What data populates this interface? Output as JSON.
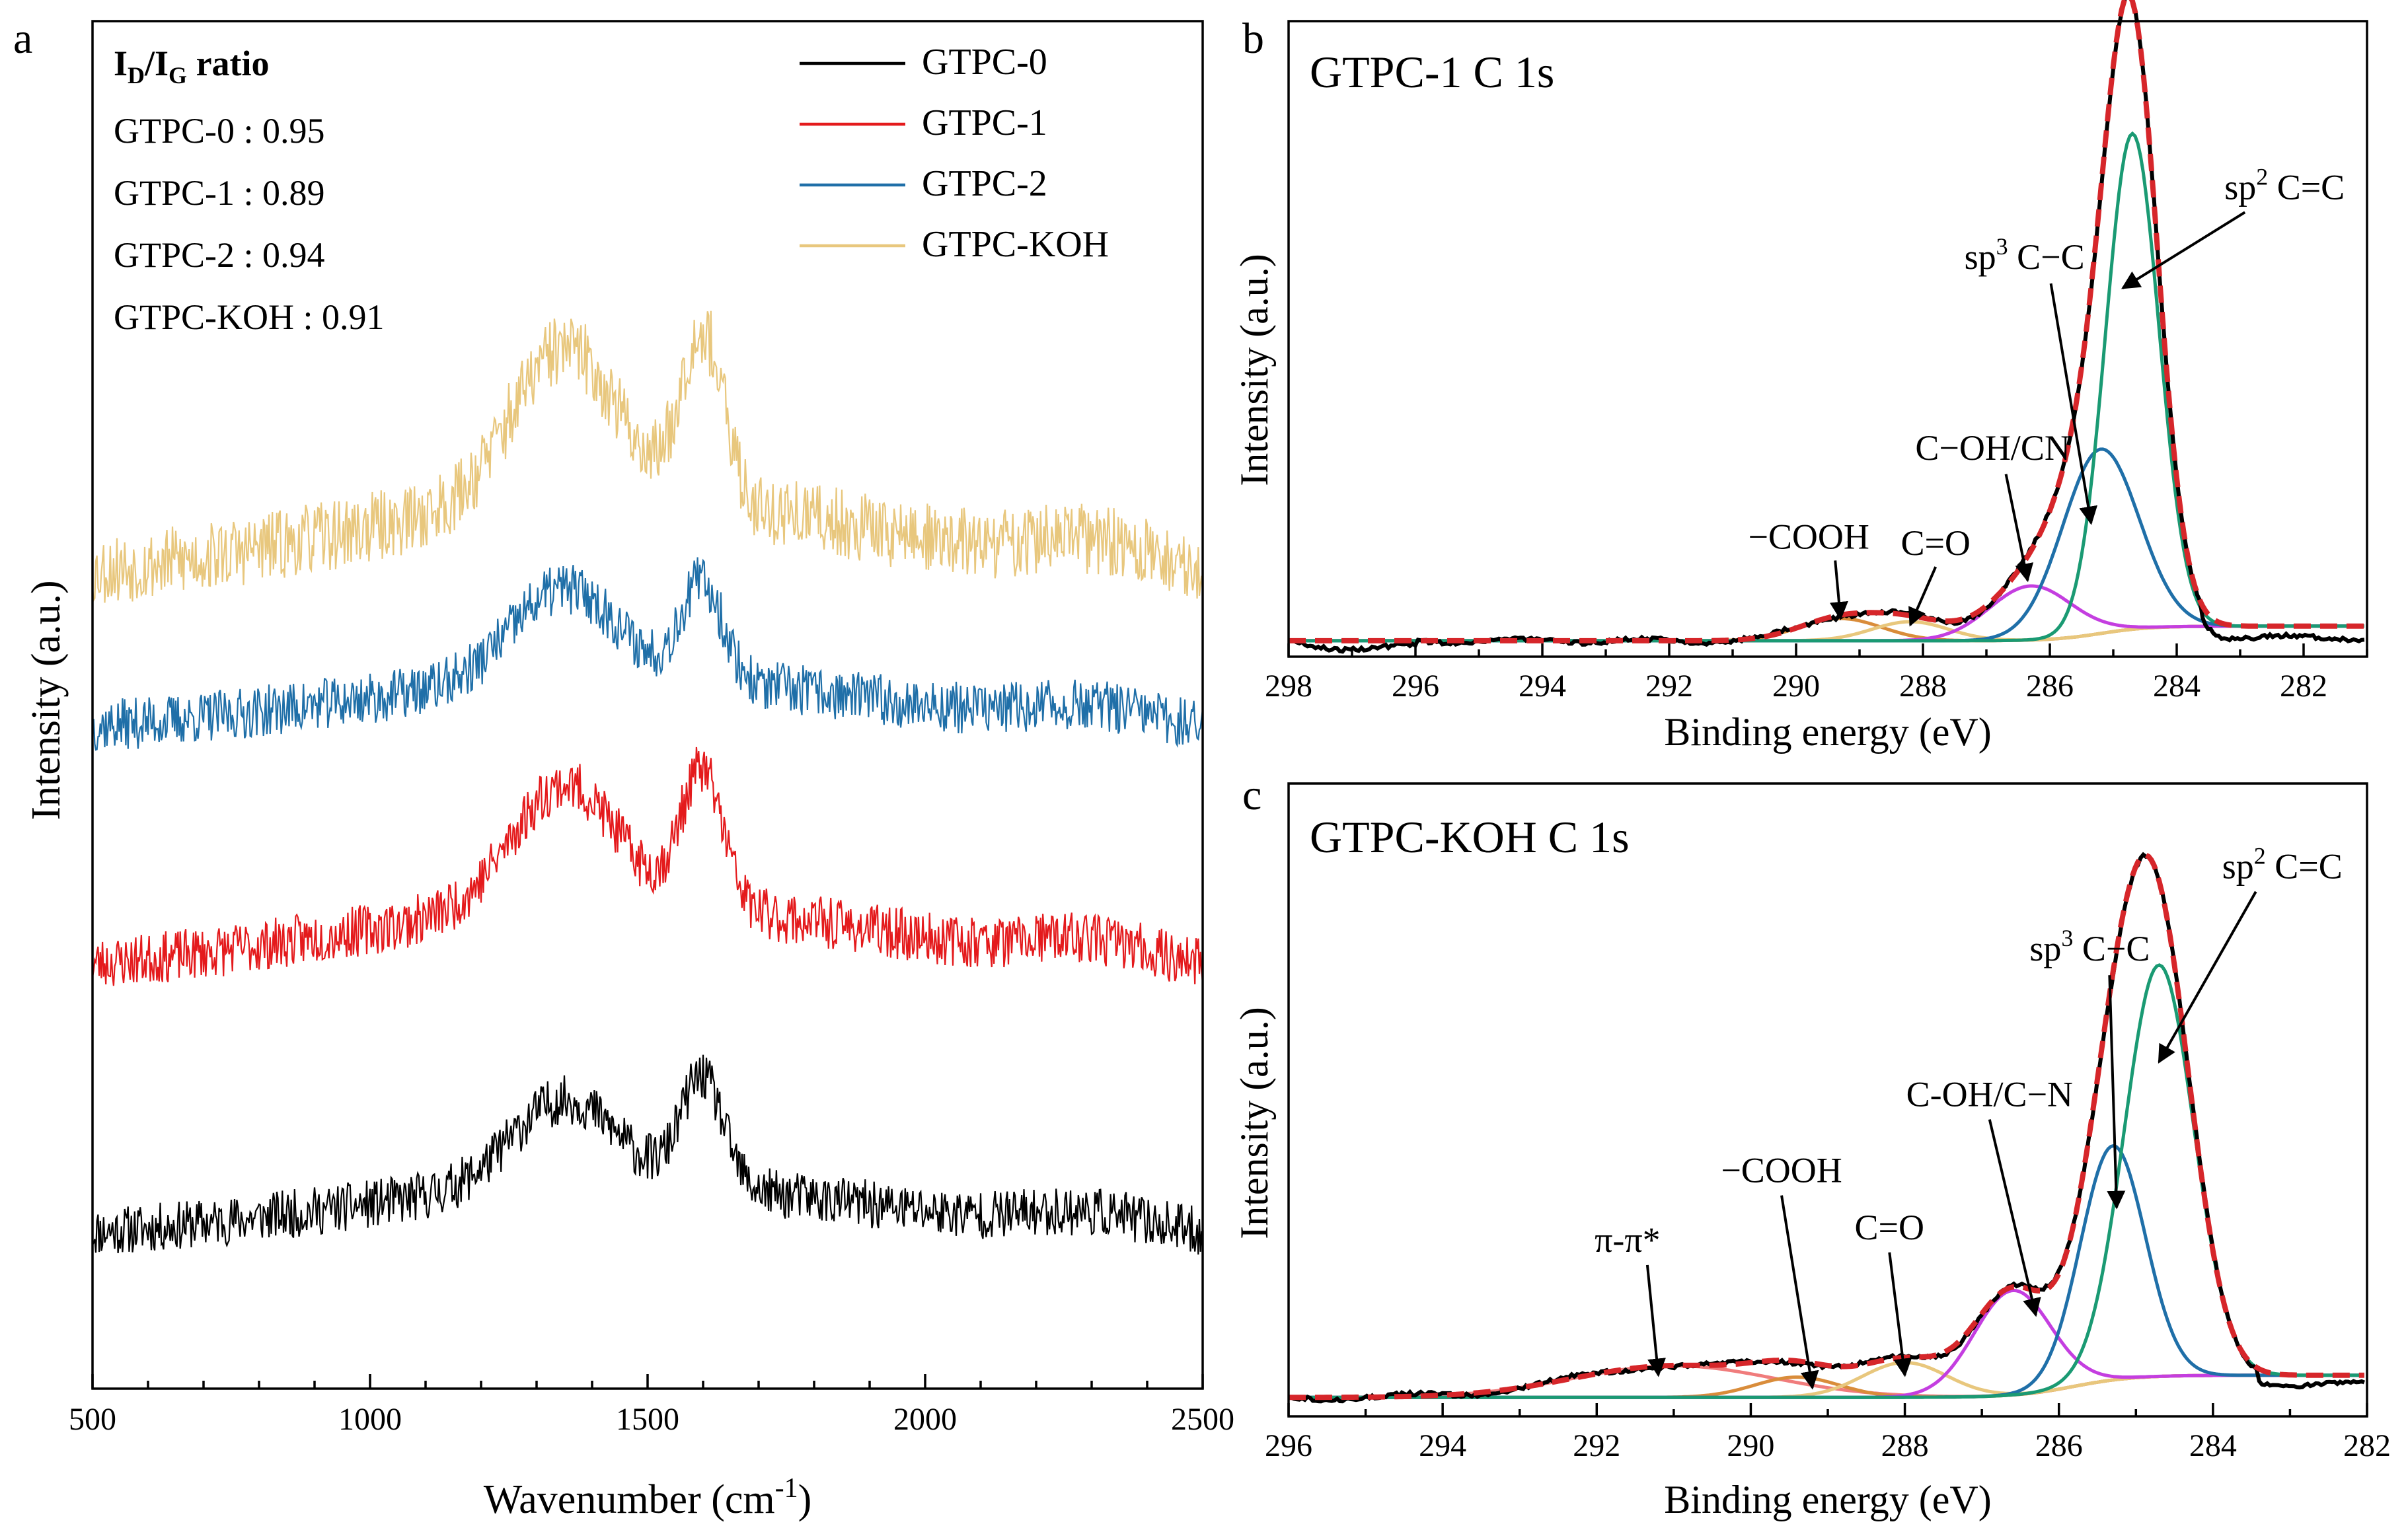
{
  "chart_data": [
    {
      "panel": "a",
      "type": "line",
      "xlabel": "Wavenumber (cm",
      "xlabel_sup": "-1",
      "xlabel_end": ")",
      "ylabel": "Intensity (a.u.)",
      "xlim": [
        500,
        2500
      ],
      "ylim": [
        0,
        100
      ],
      "xticks": [
        500,
        1000,
        1500,
        2000,
        2500
      ],
      "ratio_box": {
        "title": "I",
        "sub_d": "D",
        "slash": "/I",
        "sub_g": "G",
        "title_end": " ratio",
        "lines": [
          "GTPC-0 : 0.95",
          "GTPC-1 : 0.89",
          "GTPC-2 : 0.94",
          "GTPC-KOH : 0.91"
        ]
      },
      "series": [
        {
          "name": "GTPC-0",
          "color": "#000000",
          "offset": 9,
          "scale": 1.0,
          "noise": 1.8,
          "seed": 11,
          "d": 16,
          "g": 20
        },
        {
          "name": "GTPC-1",
          "color": "#e41a1c",
          "offset": 28,
          "scale": 1.25,
          "noise": 1.9,
          "seed": 23,
          "d": 18,
          "g": 20
        },
        {
          "name": "GTPC-2",
          "color": "#1f6fa8",
          "offset": 46,
          "scale": 1.0,
          "noise": 1.9,
          "seed": 37,
          "d": 17,
          "g": 18
        },
        {
          "name": "GTPC-KOH",
          "color": "#e8c77d",
          "offset": 56,
          "scale": 1.55,
          "noise": 2.6,
          "seed": 53,
          "d": 18,
          "g": 20
        }
      ]
    },
    {
      "panel": "b",
      "type": "line",
      "title": "GTPC-1  C 1s",
      "xlabel": "Binding energy (eV)",
      "ylabel": "Intensity (a.u.)",
      "xlim": [
        298,
        281
      ],
      "ylim": [
        0,
        100
      ],
      "xticks": [
        298,
        296,
        294,
        292,
        290,
        288,
        286,
        284,
        282
      ],
      "components": [
        {
          "name": "-COOH",
          "center": 289.3,
          "height": 3.5,
          "width": 0.65,
          "color": "#d98c3a"
        },
        {
          "name": "C=O",
          "center": 288.2,
          "height": 3.0,
          "width": 0.6,
          "color": "#e8c77d"
        },
        {
          "name": "C-OH/CN",
          "center": 286.3,
          "height": 8.5,
          "width": 0.65,
          "color": "#c43ee0"
        },
        {
          "name": "sp3 C-C",
          "center": 285.2,
          "height": 29,
          "width": 0.6,
          "color": "#1f6fa8"
        },
        {
          "name": "sp2 C=C",
          "center": 284.7,
          "height": 78,
          "width": 0.42,
          "color": "#1a9a73"
        }
      ],
      "labels": [
        {
          "text": "−COOH",
          "at": [
            289.8,
            17
          ]
        },
        {
          "text": "C=O",
          "at": [
            287.8,
            16
          ]
        },
        {
          "text": "C−OH/CN",
          "at": [
            286.9,
            31
          ]
        },
        {
          "text": "sp",
          "sup": "3",
          "rest": " C−C",
          "at": [
            286.4,
            61
          ]
        },
        {
          "text": "sp",
          "sup": "2",
          "rest": " C=C",
          "at": [
            282.3,
            72
          ]
        }
      ]
    },
    {
      "panel": "c",
      "type": "line",
      "title": "GTPC-KOH  C 1s",
      "xlabel": "Binding energy (eV)",
      "ylabel": "Intensity (a.u.)",
      "xlim": [
        296,
        282
      ],
      "ylim": [
        0,
        100
      ],
      "xticks": [
        296,
        294,
        292,
        290,
        288,
        286,
        284,
        282
      ],
      "components": [
        {
          "name": "π-π*",
          "center": 291.0,
          "height": 5.0,
          "width": 1.3,
          "color": "#f07c7c"
        },
        {
          "name": "-COOH",
          "center": 289.4,
          "height": 3.2,
          "width": 0.55,
          "color": "#d98c3a"
        },
        {
          "name": "C=O",
          "center": 288.0,
          "height": 5.5,
          "width": 0.55,
          "color": "#e8c77d"
        },
        {
          "name": "C-OH/C-N",
          "center": 286.6,
          "height": 16.5,
          "width": 0.5,
          "color": "#c43ee0"
        },
        {
          "name": "sp3 C-C",
          "center": 285.3,
          "height": 37,
          "width": 0.42,
          "color": "#1f6fa8"
        },
        {
          "name": "sp2 C=C",
          "center": 284.7,
          "height": 65,
          "width": 0.45,
          "color": "#1a9a73"
        }
      ],
      "labels": [
        {
          "text": "π-π*",
          "at": [
            291.6,
            26
          ]
        },
        {
          "text": "−COOH",
          "at": [
            289.6,
            37
          ]
        },
        {
          "text": "C=O",
          "at": [
            288.2,
            28
          ]
        },
        {
          "text": "C-OH/C−N",
          "at": [
            286.9,
            49
          ]
        },
        {
          "text": "sp",
          "sup": "3",
          "rest": " C−C",
          "at": [
            285.6,
            72
          ]
        },
        {
          "text": "sp",
          "sup": "2",
          "rest": " C=C",
          "at": [
            283.1,
            85
          ]
        }
      ]
    }
  ]
}
